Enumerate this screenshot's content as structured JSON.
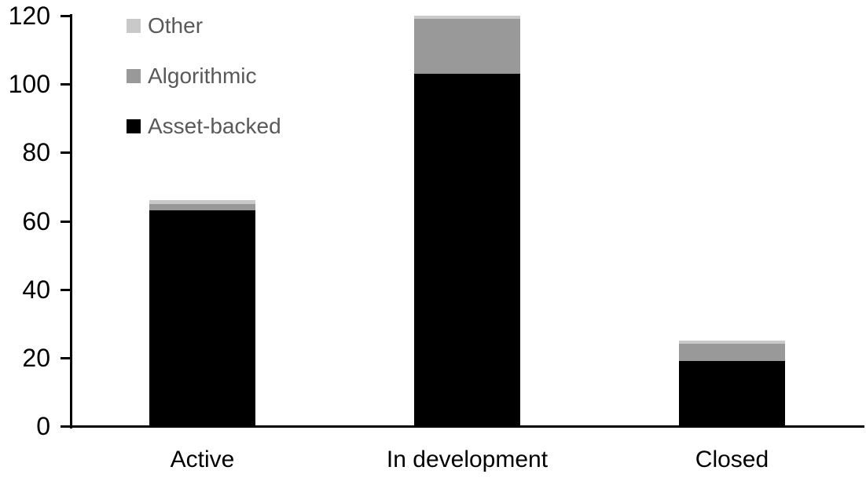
{
  "chart_data": {
    "type": "bar",
    "stacked": true,
    "title": "",
    "xlabel": "",
    "ylabel": "",
    "categories": [
      "Active",
      "In development",
      "Closed"
    ],
    "series": [
      {
        "name": "Asset-backed",
        "color": "#000000",
        "values": [
          63,
          103,
          19
        ]
      },
      {
        "name": "Algorithmic",
        "color": "#999999",
        "values": [
          2,
          16,
          5
        ]
      },
      {
        "name": "Other",
        "color": "#c9c9c9",
        "values": [
          1,
          1,
          1
        ]
      }
    ],
    "totals": [
      66,
      120,
      25
    ],
    "ylim": [
      0,
      120
    ],
    "yticks": [
      0,
      20,
      40,
      60,
      80,
      100,
      120
    ],
    "grid": false,
    "legend_position": "top-left",
    "legend_order": [
      "Other",
      "Algorithmic",
      "Asset-backed"
    ],
    "axis_color": "#000000",
    "tick_label_color": "#000000",
    "legend_text_color": "#595959"
  }
}
